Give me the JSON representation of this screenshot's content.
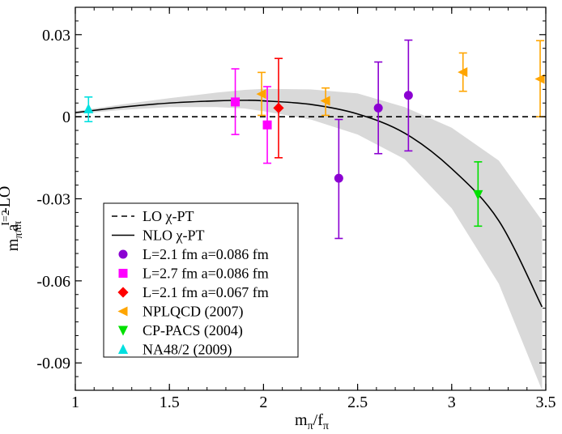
{
  "chart_data": {
    "type": "scatter",
    "title": "",
    "xlabel": {
      "base": "m",
      "sub1": "π",
      "mid": "/f",
      "sub2": "π"
    },
    "ylabel": {
      "m": "m",
      "m_sub": "π",
      "a": "a",
      "sup": "I=2",
      "sub": "ππ",
      "tail": "-LO"
    },
    "xlim": [
      1.0,
      3.5
    ],
    "ylim": [
      -0.1,
      0.04
    ],
    "xticks": [
      1,
      1.5,
      2,
      2.5,
      3,
      3.5
    ],
    "xtick_labels": [
      "1",
      "1.5",
      "2",
      "2.5",
      "3",
      "3.5"
    ],
    "yticks": [
      0.03,
      0,
      -0.03,
      -0.06,
      -0.09
    ],
    "ytick_labels": [
      "0.03",
      "0",
      "-0.03",
      "-0.06",
      "-0.09"
    ],
    "lo_line": {
      "label": "LO χ-PT",
      "y": 0
    },
    "nlo_curve": {
      "label": "NLO χ-PT",
      "x": [
        1.0,
        1.25,
        1.5,
        1.75,
        1.9,
        2.0,
        2.25,
        2.5,
        2.75,
        3.0,
        3.25,
        3.48
      ],
      "y": [
        0.0015,
        0.0035,
        0.005,
        0.0058,
        0.006,
        0.0058,
        0.0045,
        0.001,
        -0.006,
        -0.019,
        -0.038,
        -0.0695
      ],
      "upper": [
        0.002,
        0.0045,
        0.0068,
        0.0088,
        0.0098,
        0.0102,
        0.01,
        0.0085,
        0.0035,
        -0.004,
        -0.016,
        -0.038
      ],
      "lower": [
        0.001,
        0.0025,
        0.0035,
        0.0035,
        0.003,
        0.002,
        -0.001,
        -0.0065,
        -0.0155,
        -0.0335,
        -0.061,
        -0.1
      ]
    },
    "series": [
      {
        "name": "L=2.1 fm a=0.086 fm",
        "marker": "circle",
        "color": "#8b00d2",
        "points": [
          {
            "x": 2.4,
            "y": -0.0225,
            "lo": -0.0445,
            "hi": -0.001
          },
          {
            "x": 2.61,
            "y": 0.0032,
            "lo": -0.0135,
            "hi": 0.02
          },
          {
            "x": 2.77,
            "y": 0.0078,
            "lo": -0.0125,
            "hi": 0.028
          }
        ]
      },
      {
        "name": "L=2.7 fm a=0.086 fm",
        "marker": "square",
        "color": "#ff00ff",
        "points": [
          {
            "x": 1.85,
            "y": 0.0054,
            "lo": -0.0065,
            "hi": 0.0175
          },
          {
            "x": 2.02,
            "y": -0.003,
            "lo": -0.017,
            "hi": 0.011
          }
        ]
      },
      {
        "name": "L=2.1 fm a=0.067 fm",
        "marker": "diamond",
        "color": "#ff0000",
        "points": [
          {
            "x": 2.08,
            "y": 0.0032,
            "lo": -0.015,
            "hi": 0.0213
          }
        ]
      },
      {
        "name": "NPLQCD (2007)",
        "marker": "triangle-left",
        "color": "#ffa500",
        "points": [
          {
            "x": 1.99,
            "y": 0.0083,
            "lo": 0.0005,
            "hi": 0.0162
          },
          {
            "x": 2.33,
            "y": 0.0058,
            "lo": 0.0005,
            "hi": 0.0105
          },
          {
            "x": 3.06,
            "y": 0.0163,
            "lo": 0.0093,
            "hi": 0.0233
          },
          {
            "x": 3.47,
            "y": 0.0138,
            "lo": 0.0,
            "hi": 0.0278
          }
        ]
      },
      {
        "name": "CP-PACS (2004)",
        "marker": "triangle-down",
        "color": "#00e000",
        "points": [
          {
            "x": 3.14,
            "y": -0.0285,
            "lo": -0.04,
            "hi": -0.0165
          }
        ]
      },
      {
        "name": "NA48/2 (2009)",
        "marker": "triangle-up",
        "color": "#00e0e0",
        "points": [
          {
            "x": 1.07,
            "y": 0.0029,
            "lo": -0.0018,
            "hi": 0.0072
          }
        ]
      }
    ],
    "legend_position": "lower-left",
    "grid": false
  }
}
